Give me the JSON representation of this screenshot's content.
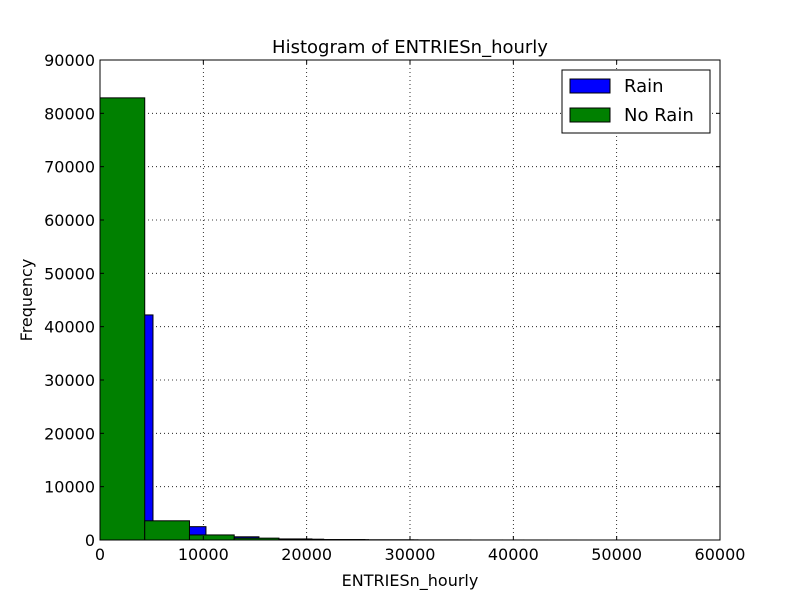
{
  "chart_data": {
    "type": "bar",
    "title": "Histogram of ENTRIESn_hourly",
    "xlabel": "ENTRIESn_hourly",
    "ylabel": "Frequency",
    "xlim": [
      0,
      60000
    ],
    "ylim": [
      0,
      90000
    ],
    "xticks": [
      0,
      10000,
      20000,
      30000,
      40000,
      50000,
      60000
    ],
    "yticks": [
      0,
      10000,
      20000,
      30000,
      40000,
      50000,
      60000,
      70000,
      80000,
      90000
    ],
    "grid": true,
    "legend_position": "top-right",
    "series": [
      {
        "name": "Rain",
        "color": "#0000ff",
        "bins": [
          {
            "x0": 0,
            "x1": 5127,
            "count": 42200
          },
          {
            "x0": 5127,
            "x1": 10254,
            "count": 2500
          },
          {
            "x0": 10254,
            "x1": 15381,
            "count": 600
          },
          {
            "x0": 15381,
            "x1": 20508,
            "count": 200
          },
          {
            "x0": 20508,
            "x1": 25635,
            "count": 80
          },
          {
            "x0": 25635,
            "x1": 30762,
            "count": 30
          },
          {
            "x0": 30762,
            "x1": 35889,
            "count": 12
          },
          {
            "x0": 35889,
            "x1": 41016,
            "count": 6
          },
          {
            "x0": 41016,
            "x1": 46143,
            "count": 3
          },
          {
            "x0": 46143,
            "x1": 51270,
            "count": 1
          }
        ]
      },
      {
        "name": "No Rain",
        "color": "#008000",
        "bins": [
          {
            "x0": 0,
            "x1": 4329,
            "count": 82900
          },
          {
            "x0": 4329,
            "x1": 8658,
            "count": 3600
          },
          {
            "x0": 8658,
            "x1": 12987,
            "count": 950
          },
          {
            "x0": 12987,
            "x1": 17316,
            "count": 350
          },
          {
            "x0": 17316,
            "x1": 21645,
            "count": 150
          },
          {
            "x0": 21645,
            "x1": 25974,
            "count": 60
          },
          {
            "x0": 25974,
            "x1": 30303,
            "count": 25
          },
          {
            "x0": 30303,
            "x1": 34632,
            "count": 12
          },
          {
            "x0": 34632,
            "x1": 38961,
            "count": 6
          },
          {
            "x0": 38961,
            "x1": 43290,
            "count": 4
          },
          {
            "x0": 43290,
            "x1": 47619,
            "count": 2
          },
          {
            "x0": 47619,
            "x1": 51948,
            "count": 1
          }
        ]
      }
    ]
  }
}
